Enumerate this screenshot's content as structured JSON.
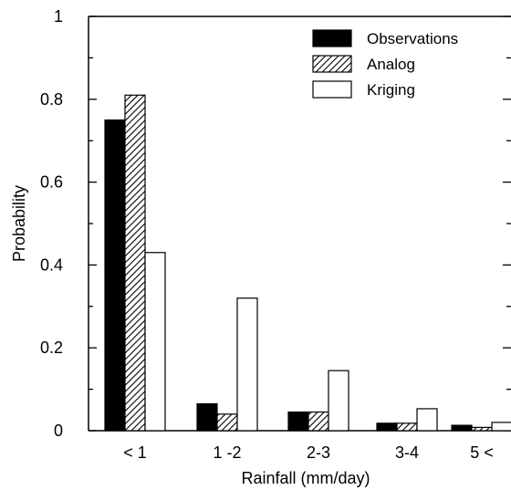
{
  "chart_data": {
    "type": "bar",
    "title": "",
    "xlabel": "Rainfall (mm/day)",
    "ylabel": "Probability",
    "categories": [
      "< 1",
      "1 -2",
      "2-3",
      "3-4",
      "5 <"
    ],
    "series": [
      {
        "name": "Observations",
        "values": [
          0.75,
          0.065,
          0.045,
          0.018,
          0.013
        ]
      },
      {
        "name": "Analog",
        "values": [
          0.81,
          0.04,
          0.045,
          0.018,
          0.008
        ]
      },
      {
        "name": "Kriging",
        "values": [
          0.43,
          0.32,
          0.145,
          0.053,
          0.02
        ]
      }
    ],
    "ylim": [
      0,
      1
    ],
    "yticks": [
      "0",
      "0.2",
      "0.4",
      "0.6",
      "0.8",
      "1"
    ],
    "legend_position": "top-right",
    "grid": false,
    "colors": {
      "Observations": "#000000",
      "Analog": "hatched",
      "Kriging": "#ffffff"
    }
  }
}
